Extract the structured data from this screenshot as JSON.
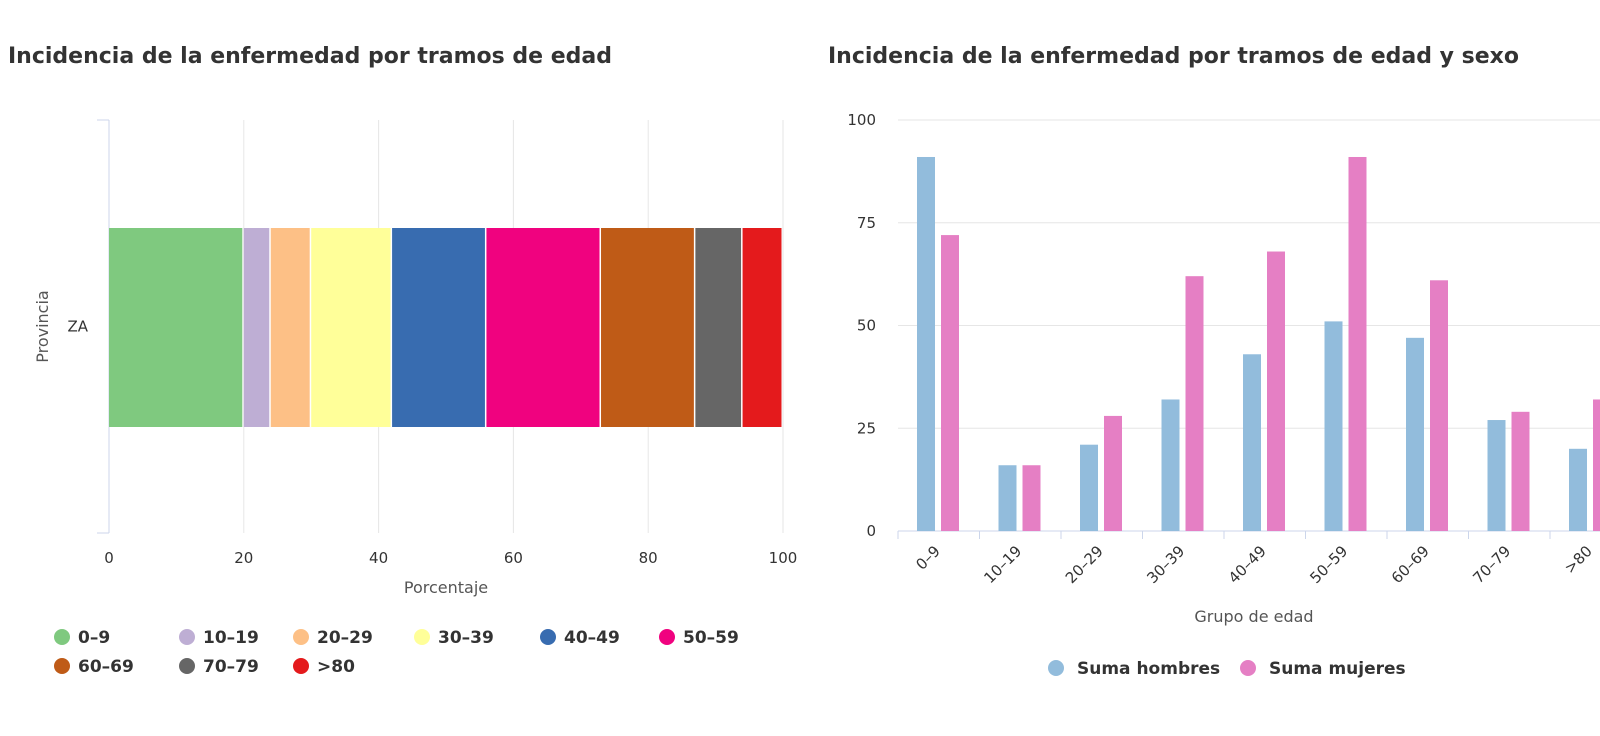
{
  "chart_data": [
    {
      "type": "bar",
      "orientation": "horizontal",
      "stacked": true,
      "title": "Incidencia de la enfermedad por tramos de edad",
      "xlabel": "Porcentaje",
      "ylabel": "Provincia",
      "categories": [
        "ZA"
      ],
      "xlim": [
        0,
        100
      ],
      "xticks": [
        "0",
        "20",
        "40",
        "60",
        "80",
        "100"
      ],
      "grid": true,
      "legend_position": "bottom",
      "series": [
        {
          "name": "0–9",
          "values": [
            20
          ],
          "color": "#7fc97f"
        },
        {
          "name": "10–19",
          "values": [
            4
          ],
          "color": "#beaed4"
        },
        {
          "name": "20–29",
          "values": [
            6
          ],
          "color": "#fdc086"
        },
        {
          "name": "30–39",
          "values": [
            12
          ],
          "color": "#ffff99"
        },
        {
          "name": "40–49",
          "values": [
            14
          ],
          "color": "#386cb0"
        },
        {
          "name": "50–59",
          "values": [
            17
          ],
          "color": "#f0027f"
        },
        {
          "name": "60–69",
          "values": [
            14
          ],
          "color": "#bf5b17"
        },
        {
          "name": "70–79",
          "values": [
            7
          ],
          "color": "#666666"
        },
        {
          "name": ">80",
          "values": [
            6
          ],
          "color": "#e41a1c"
        }
      ]
    },
    {
      "type": "bar",
      "title": "Incidencia de la enfermedad por tramos de edad y sexo",
      "xlabel": "Grupo de edad",
      "ylabel": "",
      "categories": [
        "0–9",
        "10–19",
        "20–29",
        "30–39",
        "40–49",
        "50–59",
        "60–69",
        "70–79",
        ">80"
      ],
      "ylim": [
        0,
        100
      ],
      "yticks": [
        "0",
        "25",
        "50",
        "75",
        "100"
      ],
      "grid": true,
      "legend_position": "bottom",
      "series": [
        {
          "name": "Suma hombres",
          "values": [
            91,
            16,
            21,
            32,
            43,
            51,
            47,
            27,
            20
          ],
          "color": "#92bcdc"
        },
        {
          "name": "Suma mujeres",
          "values": [
            72,
            16,
            28,
            62,
            68,
            91,
            61,
            29,
            32
          ],
          "color": "#e57fc4"
        }
      ]
    }
  ]
}
